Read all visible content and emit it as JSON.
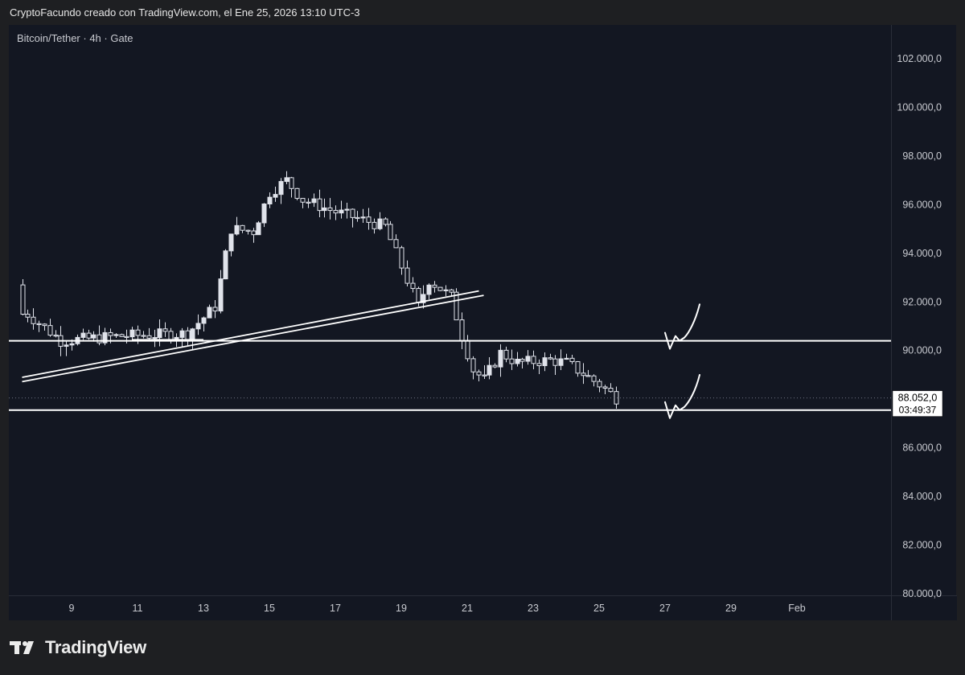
{
  "header": {
    "attribution": "CryptoFacundo creado con TradingView.com, el Ene 25, 2026 13:10 UTC-3"
  },
  "legend": {
    "symbol": "Bitcoin/Tether · 4h · Gate"
  },
  "brand": {
    "name": "TradingView",
    "icon": "tradingview-logo-icon"
  },
  "colors": {
    "background": "#131722",
    "candle": "#e0e3eb",
    "lines": "#ffffff",
    "text": "#c8cad0"
  },
  "chart_data": {
    "type": "candlestick",
    "title": "Bitcoin/Tether · 4h · Gate",
    "ylim": [
      80000,
      103000
    ],
    "y_ticks": [
      80000,
      82000,
      84000,
      86000,
      88000,
      90000,
      92000,
      94000,
      96000,
      98000,
      100000,
      102000
    ],
    "y_tick_labels": [
      "80.000,0",
      "82.000,0",
      "84.000,0",
      "86.000,0",
      "88.000,0",
      "90.000,0",
      "92.000,0",
      "94.000,0",
      "96.000,0",
      "98.000,0",
      "100.000,0",
      "102.000,0"
    ],
    "x_tick_labels": [
      "9",
      "11",
      "13",
      "15",
      "17",
      "19",
      "21",
      "23",
      "25",
      "27",
      "29",
      "Feb"
    ],
    "current_price": {
      "value": 88052,
      "label": "88.052,0",
      "countdown": "03:49:37"
    },
    "horizontal_levels": [
      90400,
      87550
    ],
    "trendline_start_date": "2026-01-07T12:00",
    "trendline": {
      "start": [
        "2026-01-07T12:00",
        88900
      ],
      "end": [
        "2026-01-21T12:00",
        92450
      ]
    },
    "trendline_offset": 180,
    "segment_level": {
      "from": "2026-01-10T20:00",
      "to": "2026-01-13T00:00",
      "value": 90450
    },
    "freehand_marks": [
      {
        "start": "2026-01-27T00:00",
        "level": 90400,
        "target": 91900
      },
      {
        "start": "2026-01-27T00:00",
        "level": 87550,
        "target": 89000
      }
    ],
    "ohlc_anchor_dates": [
      "2026-01-07T16:00",
      "2026-01-08T16:00",
      "2026-01-10T12:00",
      "2026-01-12T12:00",
      "2026-01-13T08:00",
      "2026-01-13T20:00",
      "2026-01-14T12:00",
      "2026-01-15T00:00",
      "2026-01-15T12:00",
      "2026-01-16T00:00",
      "2026-01-17T00:00",
      "2026-01-18T12:00",
      "2026-01-19T12:00",
      "2026-01-19T20:00",
      "2026-01-20T12:00",
      "2026-01-20T20:00",
      "2026-01-21T04:00",
      "2026-01-21T12:00",
      "2026-01-22T00:00",
      "2026-01-22T12:00",
      "2026-01-23T12:00",
      "2026-01-24T00:00",
      "2026-01-25T00:00",
      "2026-01-25T12:00"
    ],
    "ohlc_anchor_closes": [
      91500,
      90400,
      90600,
      90700,
      91800,
      95000,
      94900,
      96500,
      97000,
      96200,
      95700,
      95100,
      91800,
      92900,
      92200,
      90600,
      89200,
      88800,
      89900,
      89500,
      89600,
      89500,
      88600,
      88052
    ]
  }
}
